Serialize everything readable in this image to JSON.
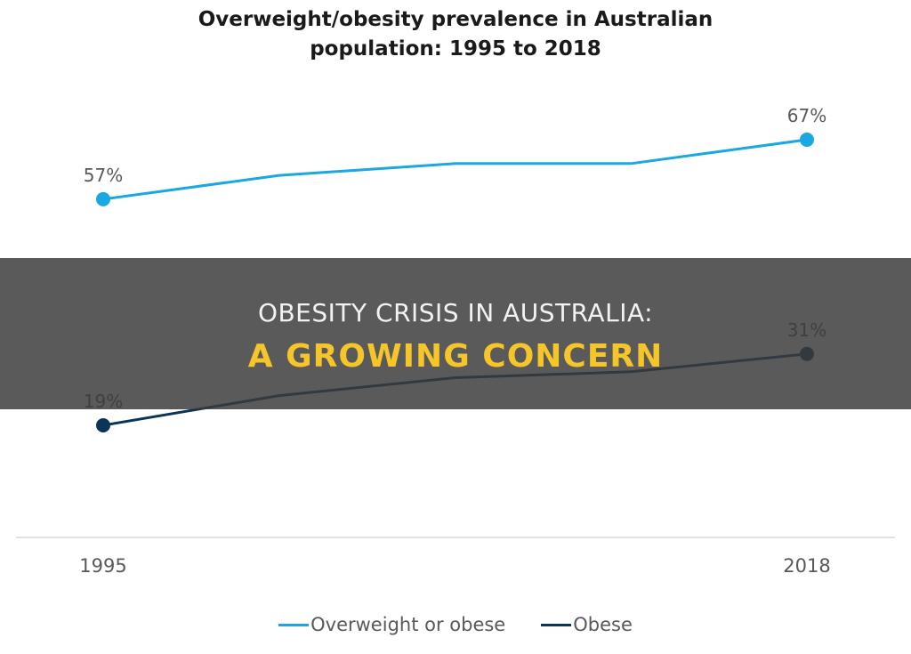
{
  "chart_data": {
    "type": "line",
    "title_lines": [
      "Overweight/obesity  prevalence in Australian",
      "population: 1995 to 2018"
    ],
    "x": [
      "1995",
      "",
      "",
      "",
      "2018"
    ],
    "tick_labels": [
      "1995",
      "2018"
    ],
    "series": [
      {
        "name": "Overweight or obese",
        "color": "#1ba7e1",
        "values": [
          57,
          61,
          63,
          63,
          67
        ],
        "labels": [
          "57%",
          "",
          "",
          "",
          "67%"
        ]
      },
      {
        "name": "Obese",
        "color": "#0b3458",
        "values": [
          19,
          24,
          27,
          28,
          31
        ],
        "labels": [
          "19%",
          "",
          "",
          "",
          "31%"
        ]
      }
    ],
    "ylim": [
      0,
      75
    ],
    "grid": false,
    "legend_position": "bottom"
  },
  "banner": {
    "line1": "OBESITY CRISIS IN AUSTRALIA:",
    "line2": "A GROWING CONCERN"
  }
}
